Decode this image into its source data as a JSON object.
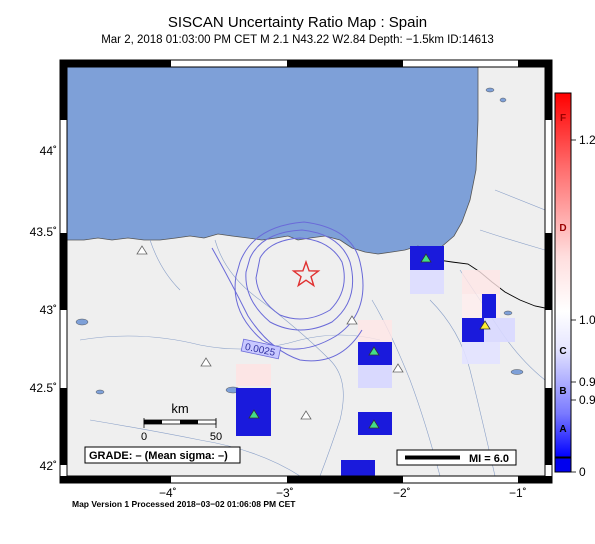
{
  "title": "SISCAN Uncertainty Ratio Map : Spain",
  "subtitle": "Mar  2, 2018 01:03:00 PM CET   M 2.1   N43.22 W2.84   Depth: −1.5km   ID:14613",
  "footer": "Map Version 1 Processed 2018−03−02 01:06:08 PM CET",
  "axes": {
    "lon_ticks": [
      "−4˚",
      "−3˚",
      "−2˚",
      "−1˚"
    ],
    "lat_ticks": [
      "44˚",
      "43.5˚",
      "43˚",
      "42.5˚",
      "42˚"
    ]
  },
  "grade_box": "GRADE: – (Mean sigma: –)",
  "magnitude_key": "MI = 6.0",
  "contour_label": "0.0025",
  "scale_bar": {
    "unit": "km",
    "start": "0",
    "end": "50"
  },
  "colorbar": {
    "letters": [
      "F",
      "D",
      "C",
      "B",
      "A"
    ],
    "values": [
      "1.2",
      "1.0",
      "0.9",
      "0.9",
      "0"
    ]
  },
  "colors": {
    "sea": "#7ea0d8",
    "land": "#efefef",
    "contour": "#6a6ad8",
    "epicenter": "#e03030",
    "high_cell": "#1a1adc"
  },
  "icons": [
    "epicenter-star-icon",
    "station-triangle-icon"
  ]
}
